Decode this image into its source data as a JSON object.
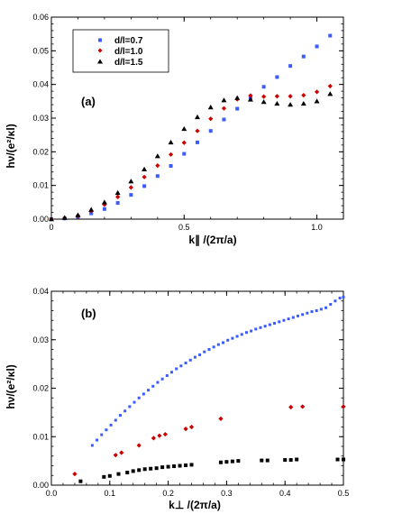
{
  "chart_data": [
    {
      "panel_label": "(a)",
      "type": "scatter",
      "xlabel": "k∥ /(2π/a)",
      "ylabel": "hν/(e²/κl)",
      "xlim": [
        0,
        1.1
      ],
      "ylim": [
        0,
        0.06
      ],
      "xticks": [
        0,
        0.5,
        1.0
      ],
      "xtick_labels": [
        "0",
        "0.5",
        "1.0"
      ],
      "yticks": [
        0,
        0.01,
        0.02,
        0.03,
        0.04,
        0.05,
        0.06
      ],
      "ytick_labels": [
        "0.00",
        "0.01",
        "0.02",
        "0.03",
        "0.04",
        "0.05",
        "0.06"
      ],
      "legend_position": "top-left",
      "series": [
        {
          "name": "d/l=0.7",
          "color": "#3b5bff",
          "marker": "square",
          "x": [
            0,
            0.05,
            0.1,
            0.15,
            0.2,
            0.25,
            0.3,
            0.35,
            0.4,
            0.45,
            0.5,
            0.55,
            0.6,
            0.65,
            0.7,
            0.75,
            0.8,
            0.85,
            0.9,
            0.95,
            1.0,
            1.05
          ],
          "y": [
            0.0,
            0.0002,
            0.0007,
            0.0017,
            0.003,
            0.0048,
            0.0072,
            0.0098,
            0.0128,
            0.0158,
            0.0194,
            0.0228,
            0.0262,
            0.0296,
            0.0328,
            0.036,
            0.0393,
            0.0422,
            0.0455,
            0.0483,
            0.0513,
            0.0545
          ]
        },
        {
          "name": "d/l=1.0",
          "color": "#cc0000",
          "marker": "diamond",
          "x": [
            0,
            0.05,
            0.1,
            0.15,
            0.2,
            0.25,
            0.3,
            0.35,
            0.4,
            0.45,
            0.5,
            0.55,
            0.6,
            0.65,
            0.7,
            0.75,
            0.8,
            0.85,
            0.9,
            0.95,
            1.0,
            1.05
          ],
          "y": [
            0.0,
            0.0003,
            0.001,
            0.0024,
            0.0043,
            0.0066,
            0.0094,
            0.0125,
            0.0159,
            0.0192,
            0.0227,
            0.0262,
            0.0298,
            0.0329,
            0.0356,
            0.0367,
            0.0364,
            0.0365,
            0.0365,
            0.0368,
            0.0378,
            0.0395
          ]
        },
        {
          "name": "d/l=1.5",
          "color": "#000000",
          "marker": "triangle",
          "x": [
            0,
            0.05,
            0.1,
            0.15,
            0.2,
            0.25,
            0.3,
            0.35,
            0.4,
            0.45,
            0.5,
            0.55,
            0.6,
            0.65,
            0.7,
            0.75,
            0.8,
            0.85,
            0.9,
            0.95,
            1.0,
            1.05
          ],
          "y": [
            0.0,
            0.0004,
            0.0012,
            0.0028,
            0.005,
            0.0078,
            0.0112,
            0.0148,
            0.0187,
            0.0228,
            0.0268,
            0.0303,
            0.0332,
            0.0353,
            0.036,
            0.0355,
            0.0348,
            0.0343,
            0.034,
            0.0343,
            0.035,
            0.0372
          ]
        }
      ]
    },
    {
      "panel_label": "(b)",
      "type": "scatter",
      "xlabel": "k⊥ /(2π/a)",
      "ylabel": "hν/(e²/κl)",
      "xlim": [
        0,
        0.5
      ],
      "ylim": [
        0,
        0.04
      ],
      "xticks": [
        0,
        0.1,
        0.2,
        0.3,
        0.4,
        0.5
      ],
      "xtick_labels": [
        "0.0",
        "0.1",
        "0.2",
        "0.3",
        "0.4",
        "0.5"
      ],
      "yticks": [
        0,
        0.01,
        0.02,
        0.03,
        0.04
      ],
      "ytick_labels": [
        "0.00",
        "0.01",
        "0.02",
        "0.03",
        "0.04"
      ],
      "series": [
        {
          "color": "#3b5bff",
          "marker": "square-small",
          "x": [
            0.07,
            0.078,
            0.086,
            0.094,
            0.102,
            0.11,
            0.118,
            0.126,
            0.134,
            0.142,
            0.15,
            0.158,
            0.166,
            0.174,
            0.182,
            0.19,
            0.198,
            0.206,
            0.214,
            0.222,
            0.23,
            0.238,
            0.246,
            0.254,
            0.262,
            0.27,
            0.278,
            0.286,
            0.294,
            0.302,
            0.31,
            0.318,
            0.326,
            0.334,
            0.342,
            0.35,
            0.358,
            0.366,
            0.374,
            0.382,
            0.39,
            0.398,
            0.406,
            0.414,
            0.422,
            0.43,
            0.438,
            0.446,
            0.454,
            0.462,
            0.47,
            0.478,
            0.486,
            0.494,
            0.5
          ],
          "y": [
            0.0082,
            0.0093,
            0.0104,
            0.0114,
            0.0124,
            0.0134,
            0.0144,
            0.0153,
            0.0162,
            0.0171,
            0.018,
            0.0188,
            0.0196,
            0.0204,
            0.0212,
            0.0219,
            0.0226,
            0.0233,
            0.024,
            0.0246,
            0.0252,
            0.0258,
            0.0264,
            0.0269,
            0.0275,
            0.028,
            0.0285,
            0.029,
            0.0294,
            0.0299,
            0.0303,
            0.0307,
            0.0311,
            0.0315,
            0.0318,
            0.0322,
            0.0325,
            0.0328,
            0.0331,
            0.0334,
            0.0337,
            0.034,
            0.0343,
            0.0346,
            0.0349,
            0.0352,
            0.0355,
            0.0358,
            0.036,
            0.0363,
            0.0366,
            0.0373,
            0.038,
            0.0386,
            0.0388
          ]
        },
        {
          "color": "#cc0000",
          "marker": "diamond",
          "x": [
            0.04,
            0.11,
            0.12,
            0.15,
            0.175,
            0.185,
            0.195,
            0.23,
            0.24,
            0.29,
            0.41,
            0.43,
            0.5
          ],
          "y": [
            0.0023,
            0.0062,
            0.0067,
            0.0082,
            0.0097,
            0.0102,
            0.0105,
            0.0116,
            0.012,
            0.0137,
            0.0161,
            0.0162,
            0.0162
          ]
        },
        {
          "color": "#000000",
          "marker": "square",
          "x": [
            0.05,
            0.09,
            0.1,
            0.115,
            0.13,
            0.14,
            0.15,
            0.16,
            0.17,
            0.18,
            0.19,
            0.2,
            0.21,
            0.22,
            0.23,
            0.24,
            0.29,
            0.3,
            0.31,
            0.32,
            0.36,
            0.37,
            0.4,
            0.41,
            0.42,
            0.49,
            0.5
          ],
          "y": [
            0.0008,
            0.0017,
            0.0019,
            0.0023,
            0.0026,
            0.0029,
            0.0031,
            0.0033,
            0.0034,
            0.0035,
            0.0037,
            0.0038,
            0.0039,
            0.004,
            0.0041,
            0.0042,
            0.0047,
            0.0048,
            0.0049,
            0.005,
            0.0051,
            0.0051,
            0.0052,
            0.0052,
            0.0053,
            0.0053,
            0.0053
          ]
        }
      ]
    }
  ]
}
